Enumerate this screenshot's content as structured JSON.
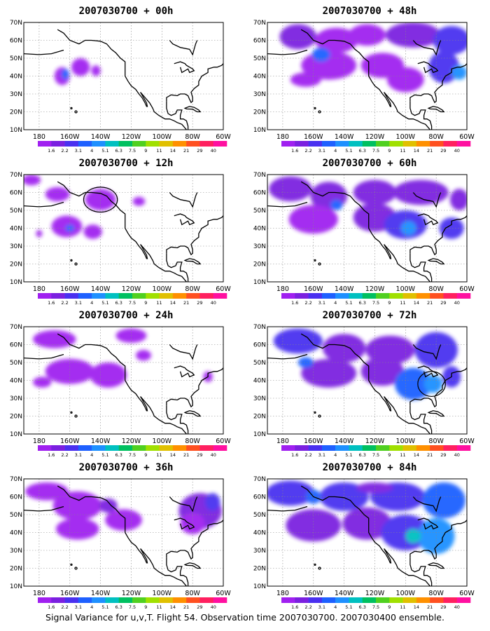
{
  "colorbar": {
    "labels": [
      "1.6",
      "2.2",
      "3.1",
      "4",
      "5.1",
      "6.3",
      "7.5",
      "9",
      "11",
      "14",
      "21",
      "29",
      "40"
    ],
    "colors": [
      "#a020f0",
      "#7b20e0",
      "#4a30f0",
      "#1e60ff",
      "#1e90ff",
      "#00c0c0",
      "#00c060",
      "#50d020",
      "#a0e000",
      "#e0c000",
      "#ff9000",
      "#ff5020",
      "#ff2060",
      "#ff10a0"
    ]
  },
  "axes": {
    "lon_labels": [
      "180",
      "160W",
      "140W",
      "120W",
      "100W",
      "80W",
      "60W"
    ],
    "lat_labels": [
      "70N",
      "60N",
      "50N",
      "40N",
      "30N",
      "20N",
      "10N"
    ]
  },
  "panels": [
    {
      "title": "2007030700 + 00h"
    },
    {
      "title": "2007030700 + 48h"
    },
    {
      "title": "2007030700 + 12h"
    },
    {
      "title": "2007030700 + 60h"
    },
    {
      "title": "2007030700 + 24h"
    },
    {
      "title": "2007030700 + 72h"
    },
    {
      "title": "2007030700 + 36h"
    },
    {
      "title": "2007030700 + 84h"
    }
  ],
  "caption": "Signal Variance for u,v,T. Flight 54. Observation time 2007030700. 2007030400 ensemble."
}
